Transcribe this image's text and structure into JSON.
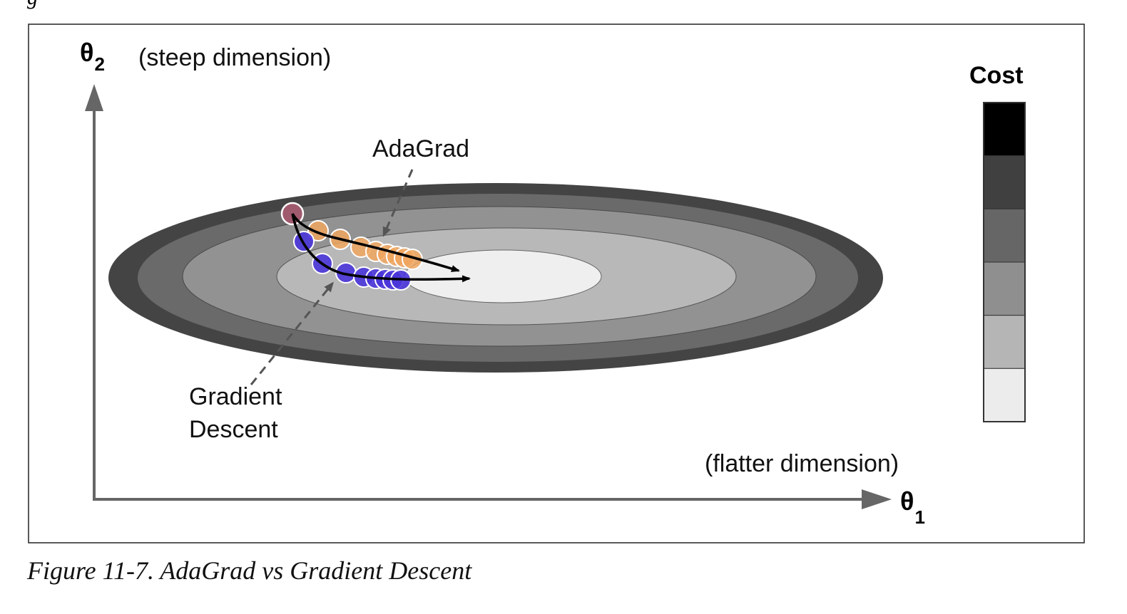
{
  "header_fragment": "g",
  "figure": {
    "axis_y": {
      "symbol": "θ",
      "subscript": "2",
      "note": "(steep dimension)"
    },
    "axis_x": {
      "symbol": "θ",
      "subscript": "1",
      "note": "(flatter dimension)"
    },
    "labels": {
      "adagrad": "AdaGrad",
      "gradient_descent_line1": "Gradient",
      "gradient_descent_line2": "Descent"
    },
    "legend": {
      "title": "Cost",
      "levels": [
        "#000000",
        "#404040",
        "#666666",
        "#8f8f8f",
        "#b5b5b5",
        "#ececec"
      ]
    },
    "contour_colors": {
      "outer_ring": "#444444",
      "ring_2": "#6a6a6a",
      "ring_3": "#929292",
      "ring_4": "#b8b8b8",
      "center": "#efefef"
    },
    "point_colors": {
      "start": "#a05a6e",
      "adagrad": "#f0a65f",
      "gradient_descent": "#4a35d9"
    }
  },
  "caption": "Figure 11-7. AdaGrad vs Gradient Descent"
}
